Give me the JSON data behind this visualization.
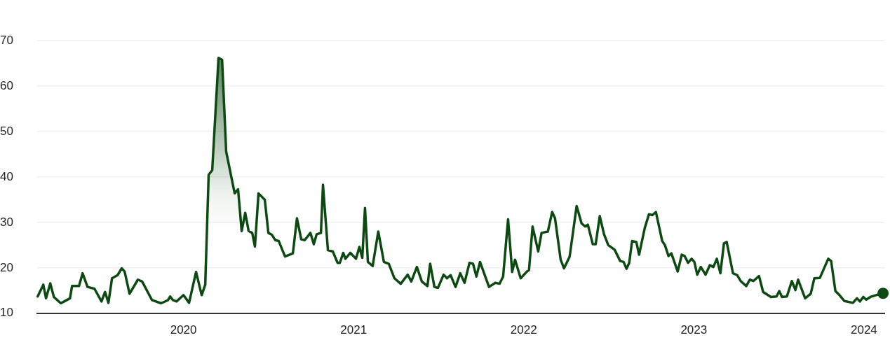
{
  "chart_data": {
    "type": "area",
    "xlim": [
      2019.14,
      2024.12
    ],
    "xticks": [
      2020,
      2021,
      2022,
      2023,
      2024
    ],
    "ylim": [
      10,
      70
    ],
    "yticks": [
      10,
      20,
      30,
      40,
      50,
      60,
      70
    ],
    "grid": "y",
    "marker": "none",
    "series": [
      {
        "color": "#0d4a12",
        "x": [
          2019.143,
          2019.176,
          2019.192,
          2019.217,
          2019.238,
          2019.279,
          2019.333,
          2019.345,
          2019.386,
          2019.407,
          2019.436,
          2019.477,
          2019.518,
          2019.539,
          2019.559,
          2019.58,
          2019.613,
          2019.637,
          2019.654,
          2019.683,
          2019.732,
          2019.757,
          2019.815,
          2019.868,
          2019.909,
          2019.922,
          2019.938,
          2019.959,
          2020.0,
          2020.033,
          2020.074,
          2020.107,
          2020.128,
          2020.148,
          2020.169,
          2020.206,
          2020.227,
          2020.251,
          2020.301,
          2020.321,
          2020.342,
          2020.363,
          2020.383,
          2020.404,
          2020.42,
          2020.441,
          2020.478,
          2020.499,
          2020.519,
          2020.54,
          2020.56,
          2020.597,
          2020.643,
          2020.667,
          2020.692,
          2020.713,
          2020.746,
          2020.766,
          2020.783,
          2020.808,
          2020.82,
          2020.849,
          2020.878,
          2020.906,
          2020.919,
          2020.939,
          2020.952,
          2020.981,
          2021.014,
          2021.034,
          2021.051,
          2021.067,
          2021.084,
          2021.112,
          2021.145,
          2021.178,
          2021.207,
          2021.24,
          2021.277,
          2021.318,
          2021.339,
          2021.372,
          2021.401,
          2021.434,
          2021.45,
          2021.475,
          2021.496,
          2021.529,
          2021.549,
          2021.57,
          2021.599,
          2021.627,
          2021.652,
          2021.681,
          2021.702,
          2021.722,
          2021.743,
          2021.796,
          2021.833,
          2021.858,
          2021.879,
          2021.908,
          2021.932,
          2021.949,
          2021.982,
          2022.019,
          2022.031,
          2022.052,
          2022.085,
          2022.105,
          2022.142,
          2022.167,
          2022.184,
          2022.217,
          2022.237,
          2022.27,
          2022.311,
          2022.34,
          2022.361,
          2022.377,
          2022.406,
          2022.423,
          2022.447,
          2022.472,
          2022.497,
          2022.534,
          2022.567,
          2022.587,
          2022.604,
          2022.62,
          2022.637,
          2022.662,
          2022.678,
          2022.711,
          2022.736,
          2022.756,
          2022.777,
          2022.814,
          2022.83,
          2022.851,
          2022.868,
          2022.905,
          2022.929,
          2022.946,
          2022.966,
          2022.987,
          2023.003,
          2023.02,
          2023.041,
          2023.069,
          2023.094,
          2023.115,
          2023.135,
          2023.156,
          2023.177,
          2023.193,
          2023.23,
          2023.255,
          2023.275,
          2023.308,
          2023.329,
          2023.35,
          2023.383,
          2023.407,
          2023.453,
          2023.486,
          2023.502,
          2023.518,
          2023.547,
          2023.576,
          2023.597,
          2023.613,
          2023.654,
          2023.687,
          2023.708,
          2023.741,
          2023.79,
          2023.807,
          2023.832,
          2023.856,
          2023.885,
          2023.935,
          2023.959,
          2023.976,
          2023.996,
          2024.013,
          2024.038,
          2024.071,
          2024.112
        ],
        "values": [
          13.7,
          16.3,
          13.3,
          16.6,
          13.6,
          12.2,
          13.3,
          16.0,
          16.0,
          18.8,
          15.8,
          15.4,
          12.6,
          14.7,
          12.3,
          17.7,
          18.4,
          19.9,
          19.2,
          14.3,
          17.4,
          17.0,
          12.9,
          12.2,
          12.9,
          13.7,
          12.9,
          12.6,
          14.0,
          12.3,
          19.1,
          14.0,
          16.3,
          40.5,
          41.5,
          66.2,
          65.8,
          45.6,
          36.4,
          37.3,
          28.1,
          32.1,
          28.1,
          27.7,
          24.7,
          36.4,
          35.0,
          27.7,
          27.3,
          26.1,
          25.9,
          22.5,
          23.2,
          30.9,
          26.3,
          26.1,
          27.7,
          25.2,
          27.4,
          27.7,
          38.3,
          23.9,
          23.6,
          21.1,
          21.1,
          23.3,
          22.0,
          23.3,
          22.0,
          24.6,
          22.2,
          33.2,
          21.3,
          20.4,
          28.0,
          21.3,
          20.9,
          17.7,
          16.5,
          18.5,
          17.0,
          20.2,
          17.0,
          16.0,
          20.9,
          15.8,
          15.6,
          18.5,
          17.7,
          18.4,
          15.8,
          18.8,
          16.7,
          21.1,
          20.9,
          18.1,
          21.3,
          15.8,
          16.7,
          16.5,
          18.1,
          30.7,
          19.1,
          21.8,
          17.7,
          19.2,
          19.5,
          29.1,
          23.6,
          27.7,
          28.0,
          32.3,
          30.9,
          21.8,
          19.9,
          22.5,
          33.6,
          29.8,
          29.1,
          29.5,
          25.2,
          25.2,
          31.4,
          27.4,
          25.0,
          24.0,
          21.5,
          21.3,
          19.8,
          21.1,
          25.9,
          25.7,
          22.9,
          28.7,
          31.8,
          31.6,
          32.3,
          25.9,
          25.0,
          22.6,
          23.2,
          19.2,
          22.9,
          22.6,
          21.1,
          22.0,
          21.3,
          18.5,
          20.2,
          18.5,
          20.6,
          20.2,
          22.0,
          18.8,
          25.4,
          25.7,
          18.8,
          18.4,
          17.1,
          16.0,
          17.4,
          17.1,
          18.2,
          14.7,
          13.6,
          13.7,
          14.9,
          13.6,
          13.7,
          17.1,
          15.1,
          17.4,
          13.3,
          14.3,
          17.7,
          17.8,
          22.0,
          21.5,
          14.9,
          14.0,
          12.7,
          12.3,
          13.3,
          12.6,
          13.6,
          13.0,
          13.6,
          14.0,
          14.4
        ]
      }
    ]
  }
}
